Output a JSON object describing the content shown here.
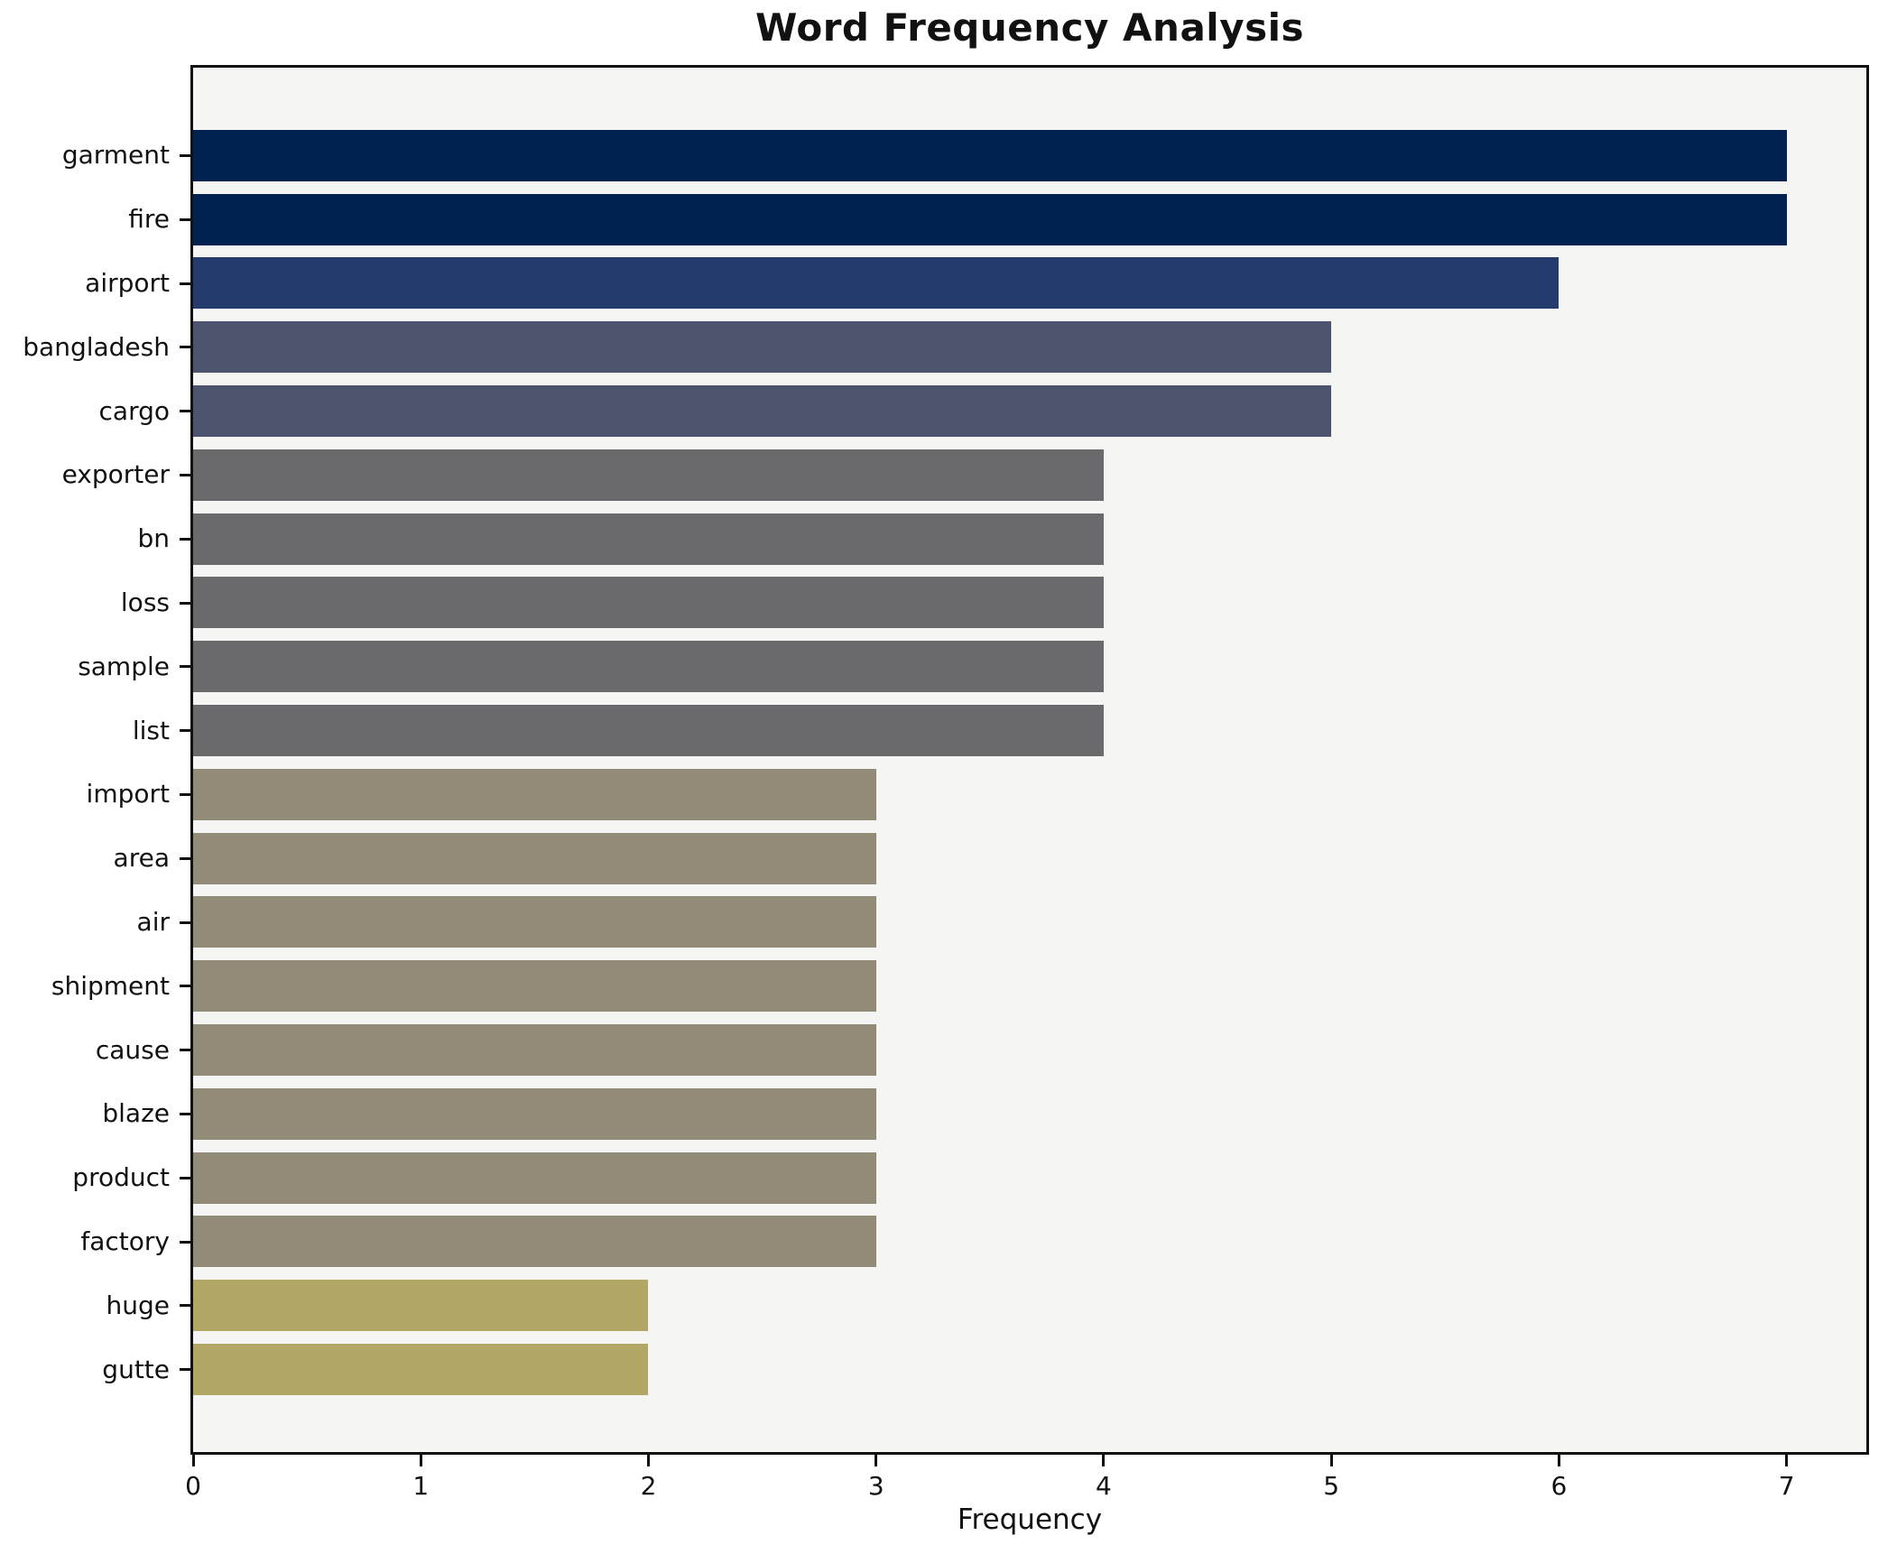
{
  "chart_data": {
    "type": "bar",
    "orientation": "horizontal",
    "title": "Word Frequency Analysis",
    "xlabel": "Frequency",
    "ylabel": "",
    "categories": [
      "garment",
      "fire",
      "airport",
      "bangladesh",
      "cargo",
      "exporter",
      "bn",
      "loss",
      "sample",
      "list",
      "import",
      "area",
      "air",
      "shipment",
      "cause",
      "blaze",
      "product",
      "factory",
      "huge",
      "gutte"
    ],
    "values": [
      7,
      7,
      6,
      5,
      5,
      4,
      4,
      4,
      4,
      4,
      3,
      3,
      3,
      3,
      3,
      3,
      3,
      3,
      2,
      2
    ],
    "bar_colors": [
      "#012250",
      "#012250",
      "#233b6d",
      "#4d546e",
      "#4d546e",
      "#6a6a6d",
      "#6a6a6d",
      "#6a6a6d",
      "#6a6a6d",
      "#6a6a6d",
      "#918b77",
      "#918b77",
      "#918b77",
      "#918b77",
      "#918b77",
      "#918b77",
      "#918b77",
      "#918b77",
      "#b3a766",
      "#b3a766"
    ],
    "xticks": [
      0,
      1,
      2,
      3,
      4,
      5,
      6,
      7
    ],
    "xlim": [
      0,
      7.35
    ],
    "grid": false,
    "legend": null,
    "plot_background": "#f5f5f4",
    "figure_background": "#ffffff",
    "spine_color": "#111111",
    "text_color": "#111111"
  }
}
